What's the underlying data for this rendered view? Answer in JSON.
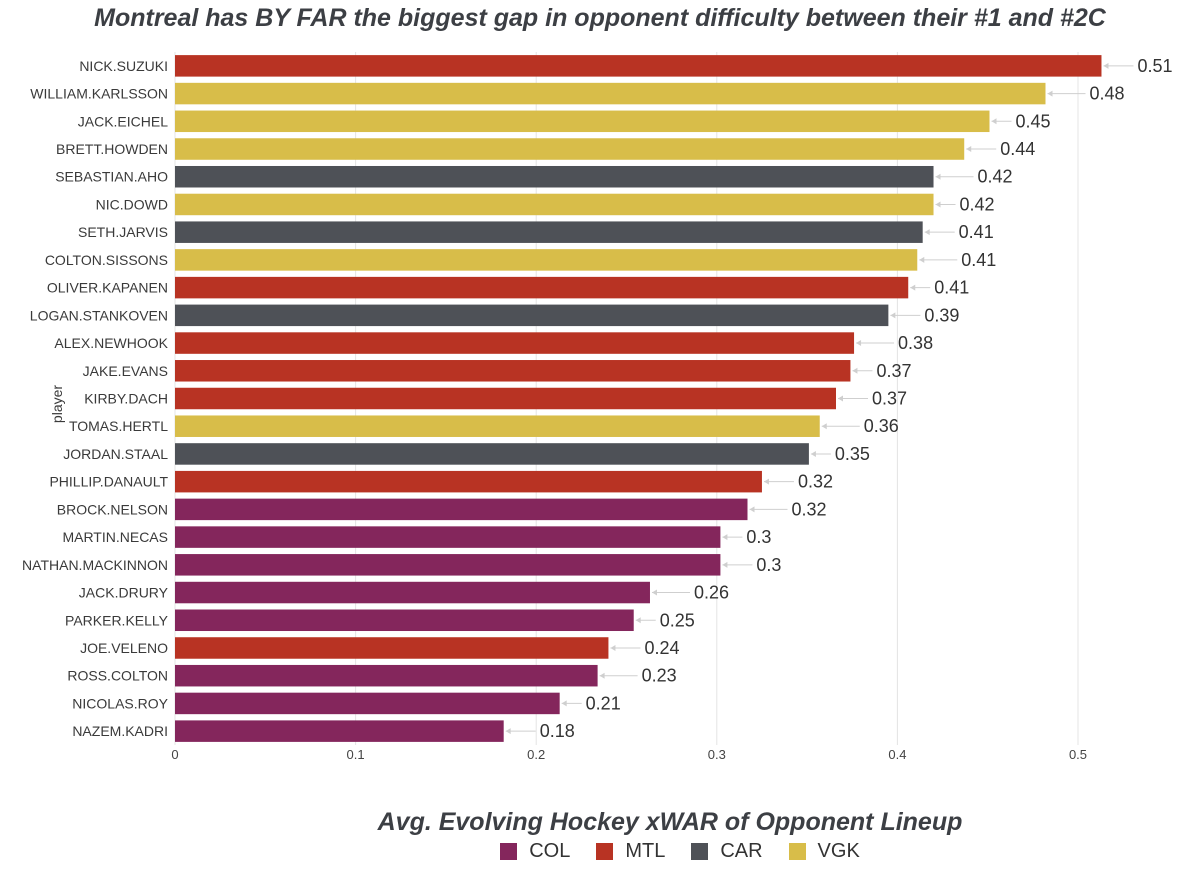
{
  "chart_data": {
    "type": "bar",
    "orientation": "horizontal",
    "title": "Montreal has BY FAR the biggest gap in opponent difficulty between their #1 and #2C",
    "xlabel": "Avg. Evolving Hockey xWAR of Opponent Lineup",
    "ylabel": "player",
    "xlim": [
      0,
      0.525
    ],
    "x_ticks": [
      "0",
      "0.1",
      "0.2",
      "0.3",
      "0.4",
      "0.5"
    ],
    "grid": true,
    "legend_position": "bottom",
    "teams": [
      {
        "name": "COL",
        "color": "#84265c"
      },
      {
        "name": "MTL",
        "color": "#b83323"
      },
      {
        "name": "CAR",
        "color": "#4e5157"
      },
      {
        "name": "VGK",
        "color": "#d8bd49"
      }
    ],
    "bars": [
      {
        "player": "NICK.SUZUKI",
        "value": 0.513,
        "label": "0.51",
        "team": "MTL"
      },
      {
        "player": "WILLIAM.KARLSSON",
        "value": 0.482,
        "label": "0.48",
        "team": "VGK"
      },
      {
        "player": "JACK.EICHEL",
        "value": 0.451,
        "label": "0.45",
        "team": "VGK"
      },
      {
        "player": "BRETT.HOWDEN",
        "value": 0.437,
        "label": "0.44",
        "team": "VGK"
      },
      {
        "player": "SEBASTIAN.AHO",
        "value": 0.42,
        "label": "0.42",
        "team": "CAR"
      },
      {
        "player": "NIC.DOWD",
        "value": 0.42,
        "label": "0.42",
        "team": "VGK"
      },
      {
        "player": "SETH.JARVIS",
        "value": 0.414,
        "label": "0.41",
        "team": "CAR"
      },
      {
        "player": "COLTON.SISSONS",
        "value": 0.411,
        "label": "0.41",
        "team": "VGK"
      },
      {
        "player": "OLIVER.KAPANEN",
        "value": 0.406,
        "label": "0.41",
        "team": "MTL"
      },
      {
        "player": "LOGAN.STANKOVEN",
        "value": 0.395,
        "label": "0.39",
        "team": "CAR"
      },
      {
        "player": "ALEX.NEWHOOK",
        "value": 0.376,
        "label": "0.38",
        "team": "MTL"
      },
      {
        "player": "JAKE.EVANS",
        "value": 0.374,
        "label": "0.37",
        "team": "MTL"
      },
      {
        "player": "KIRBY.DACH",
        "value": 0.366,
        "label": "0.37",
        "team": "MTL"
      },
      {
        "player": "TOMAS.HERTL",
        "value": 0.357,
        "label": "0.36",
        "team": "VGK"
      },
      {
        "player": "JORDAN.STAAL",
        "value": 0.351,
        "label": "0.35",
        "team": "CAR"
      },
      {
        "player": "PHILLIP.DANAULT",
        "value": 0.325,
        "label": "0.32",
        "team": "MTL"
      },
      {
        "player": "BROCK.NELSON",
        "value": 0.317,
        "label": "0.32",
        "team": "COL"
      },
      {
        "player": "MARTIN.NECAS",
        "value": 0.302,
        "label": "0.3",
        "team": "COL"
      },
      {
        "player": "NATHAN.MACKINNON",
        "value": 0.302,
        "label": "0.3",
        "team": "COL"
      },
      {
        "player": "JACK.DRURY",
        "value": 0.263,
        "label": "0.26",
        "team": "COL"
      },
      {
        "player": "PARKER.KELLY",
        "value": 0.254,
        "label": "0.25",
        "team": "COL"
      },
      {
        "player": "JOE.VELENO",
        "value": 0.24,
        "label": "0.24",
        "team": "MTL"
      },
      {
        "player": "ROSS.COLTON",
        "value": 0.234,
        "label": "0.23",
        "team": "COL"
      },
      {
        "player": "NICOLAS.ROY",
        "value": 0.213,
        "label": "0.21",
        "team": "COL"
      },
      {
        "player": "NAZEM.KADRI",
        "value": 0.182,
        "label": "0.18",
        "team": "COL"
      }
    ]
  }
}
